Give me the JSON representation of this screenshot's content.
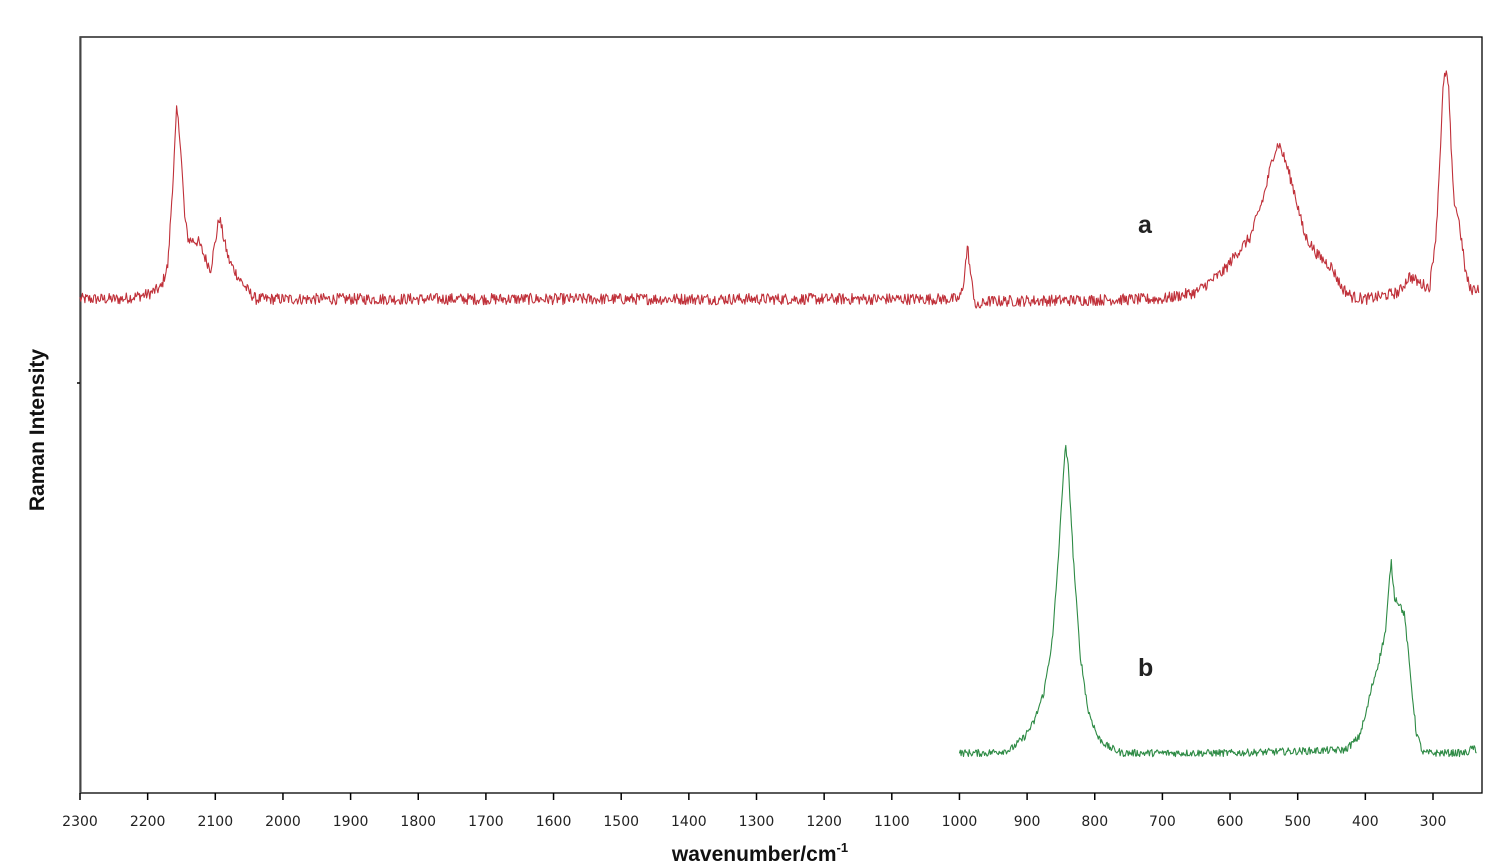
{
  "chart_data": {
    "type": "line",
    "title": "",
    "xlabel": "wavenumber/cm-1",
    "xlabel_base": "wavenumber/cm",
    "xlabel_sup": "-1",
    "ylabel": "Raman Intensity",
    "xlim": [
      2300,
      229
    ],
    "x_reversed": true,
    "grid": false,
    "legend": "none (inline trace labels a, b)",
    "x_ticks": [
      2300,
      2200,
      2100,
      2000,
      1900,
      1800,
      1700,
      1600,
      1500,
      1400,
      1300,
      1200,
      1100,
      1000,
      900,
      800,
      700,
      600,
      500,
      400,
      300
    ],
    "y_ticks_labels": [],
    "series": [
      {
        "name": "a",
        "label": "a",
        "color": "#c0313a",
        "x_range": [
          2300,
          232
        ],
        "baseline": 0,
        "noise": 0.025,
        "peaks_note": "relative intensity, baseline 0, max ~1.0",
        "points": [
          [
            2300,
            0.0
          ],
          [
            2240,
            0.0
          ],
          [
            2200,
            0.02
          ],
          [
            2180,
            0.05
          ],
          [
            2170,
            0.15
          ],
          [
            2162,
            0.55
          ],
          [
            2157,
            0.83
          ],
          [
            2152,
            0.7
          ],
          [
            2145,
            0.35
          ],
          [
            2140,
            0.26
          ],
          [
            2125,
            0.25
          ],
          [
            2115,
            0.18
          ],
          [
            2107,
            0.13
          ],
          [
            2100,
            0.25
          ],
          [
            2094,
            0.36
          ],
          [
            2088,
            0.27
          ],
          [
            2080,
            0.17
          ],
          [
            2065,
            0.09
          ],
          [
            2050,
            0.03
          ],
          [
            2040,
            0.0
          ],
          [
            1000,
            0.0
          ],
          [
            995,
            0.05
          ],
          [
            988,
            0.23
          ],
          [
            982,
            0.07
          ],
          [
            975,
            -0.04
          ],
          [
            960,
            -0.01
          ],
          [
            700,
            0.0
          ],
          [
            650,
            0.03
          ],
          [
            610,
            0.12
          ],
          [
            590,
            0.2
          ],
          [
            570,
            0.27
          ],
          [
            550,
            0.45
          ],
          [
            535,
            0.64
          ],
          [
            528,
            0.68
          ],
          [
            518,
            0.6
          ],
          [
            505,
            0.47
          ],
          [
            490,
            0.28
          ],
          [
            470,
            0.19
          ],
          [
            450,
            0.14
          ],
          [
            435,
            0.05
          ],
          [
            420,
            0.01
          ],
          [
            400,
            0.0
          ],
          [
            380,
            0.01
          ],
          [
            350,
            0.03
          ],
          [
            335,
            0.1
          ],
          [
            320,
            0.07
          ],
          [
            305,
            0.05
          ],
          [
            295,
            0.3
          ],
          [
            285,
            0.92
          ],
          [
            281,
            1.0
          ],
          [
            277,
            0.92
          ],
          [
            270,
            0.45
          ],
          [
            262,
            0.35
          ],
          [
            252,
            0.12
          ],
          [
            245,
            0.04
          ],
          [
            232,
            0.05
          ]
        ],
        "annotations": [
          {
            "x": 740,
            "text": "a"
          }
        ]
      },
      {
        "name": "b",
        "label": "b",
        "color": "#2e8b45",
        "x_range": [
          1000,
          235
        ],
        "baseline": 0,
        "noise": 0.012,
        "points": [
          [
            1000,
            0.0
          ],
          [
            960,
            0.0
          ],
          [
            925,
            0.01
          ],
          [
            905,
            0.05
          ],
          [
            890,
            0.1
          ],
          [
            875,
            0.2
          ],
          [
            862,
            0.38
          ],
          [
            852,
            0.7
          ],
          [
            846,
            0.93
          ],
          [
            843,
            1.0
          ],
          [
            839,
            0.93
          ],
          [
            832,
            0.65
          ],
          [
            822,
            0.33
          ],
          [
            810,
            0.14
          ],
          [
            795,
            0.05
          ],
          [
            780,
            0.02
          ],
          [
            760,
            0.0
          ],
          [
            600,
            0.0
          ],
          [
            430,
            0.01
          ],
          [
            410,
            0.05
          ],
          [
            400,
            0.12
          ],
          [
            390,
            0.22
          ],
          [
            380,
            0.3
          ],
          [
            370,
            0.4
          ],
          [
            362,
            0.63
          ],
          [
            357,
            0.51
          ],
          [
            350,
            0.49
          ],
          [
            342,
            0.45
          ],
          [
            335,
            0.29
          ],
          [
            325,
            0.07
          ],
          [
            315,
            0.0
          ],
          [
            250,
            0.0
          ],
          [
            240,
            0.02
          ],
          [
            235,
            -0.01
          ]
        ],
        "annotations": [
          {
            "x": 740,
            "text": "b"
          }
        ]
      }
    ]
  },
  "labels": {
    "trace_a": "a",
    "trace_b": "b",
    "y_axis_title": "Raman  Intensity",
    "x_axis_title": "wavenumber/cm",
    "x_axis_sup": "-1"
  },
  "colors": {
    "series_a": "#c0313a",
    "series_b": "#2e8b45",
    "axis": "#000000"
  }
}
